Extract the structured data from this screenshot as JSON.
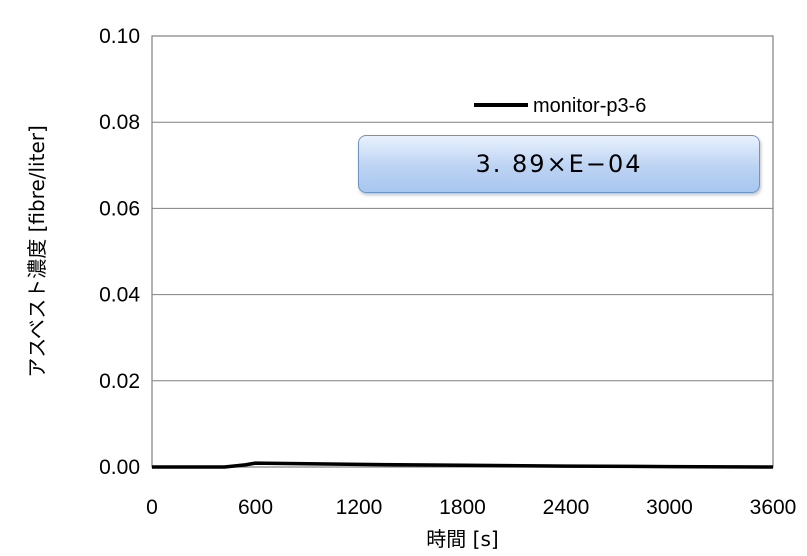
{
  "chart_data": {
    "type": "line",
    "xlabel": "時間 [s]",
    "ylabel": "アスベスト濃度 [fibre/liter]",
    "xlim": [
      0,
      3600
    ],
    "ylim": [
      0,
      0.1
    ],
    "x_ticks": [
      "0",
      "600",
      "1200",
      "1800",
      "2400",
      "3000",
      "3600"
    ],
    "y_ticks": [
      "0.00",
      "0.02",
      "0.04",
      "0.06",
      "0.08",
      "0.10"
    ],
    "grid": "horizontal",
    "legend_position": "top-right",
    "annotation": "3. 89×E−04",
    "series": [
      {
        "name": "monitor-p3-6",
        "color": "#000000",
        "x": [
          0,
          420,
          540,
          600,
          780,
          1200,
          1800,
          2400,
          3000,
          3600
        ],
        "y": [
          0.0,
          0.0,
          0.0005,
          0.0009,
          0.0008,
          0.0006,
          0.0004,
          0.0002,
          0.0001,
          0.0
        ]
      }
    ]
  }
}
